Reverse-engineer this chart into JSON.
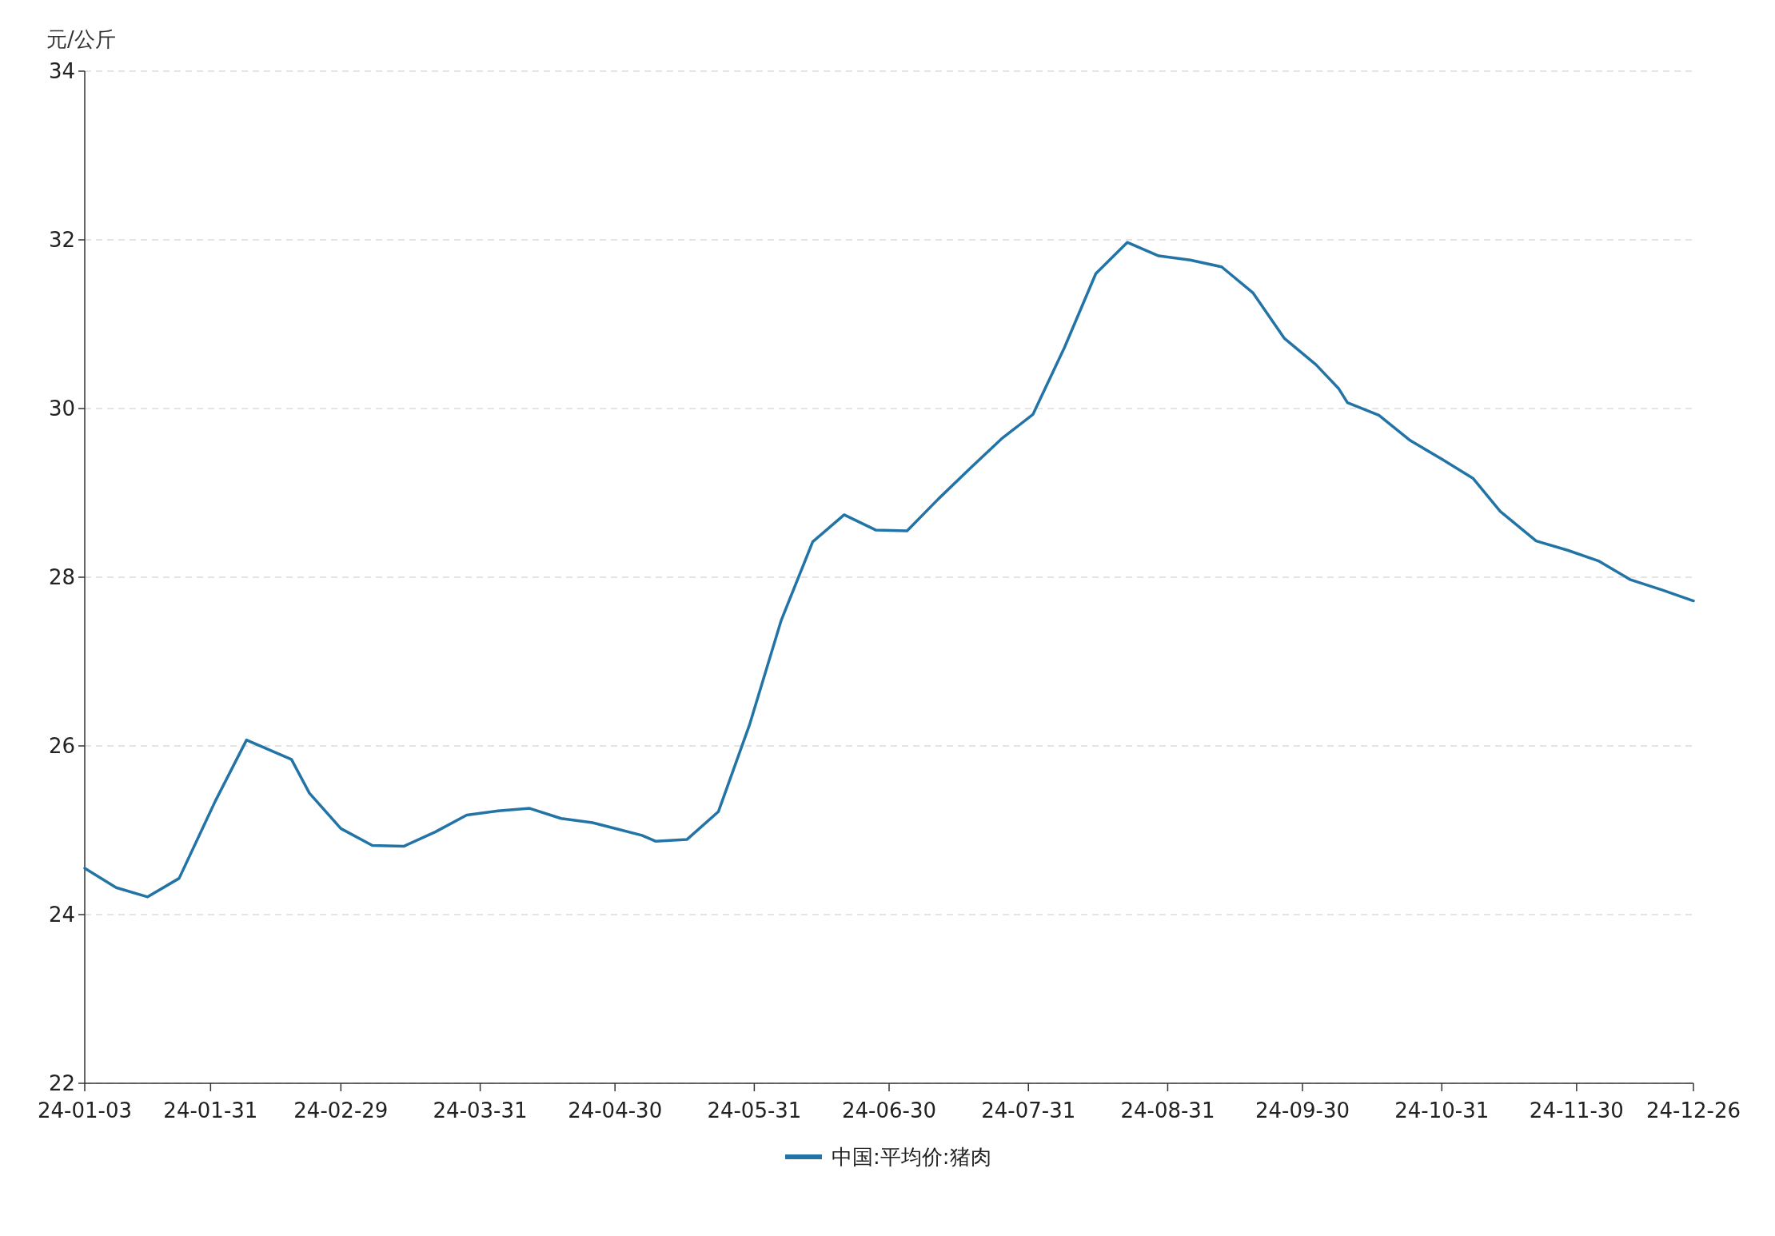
{
  "chart_data": {
    "type": "line",
    "ylabel": "元/公斤",
    "xlim": [
      "--01-03",
      "--12-26"
    ],
    "ylim": [
      22,
      34
    ],
    "yticks": [
      22,
      24,
      26,
      28,
      30,
      32,
      34
    ],
    "xticks": [
      {
        "value": "--01-03",
        "label": "24-01-03"
      },
      {
        "value": "--01-31",
        "label": "24-01-31"
      },
      {
        "value": "--02-29",
        "label": "24-02-29"
      },
      {
        "value": "--03-31",
        "label": "24-03-31"
      },
      {
        "value": "--04-30",
        "label": "24-04-30"
      },
      {
        "value": "--05-31",
        "label": "24-05-31"
      },
      {
        "value": "--06-30",
        "label": "24-06-30"
      },
      {
        "value": "--07-31",
        "label": "24-07-31"
      },
      {
        "value": "--08-31",
        "label": "24-08-31"
      },
      {
        "value": "--09-30",
        "label": "24-09-30"
      },
      {
        "value": "--10-31",
        "label": "24-10-31"
      },
      {
        "value": "--11-30",
        "label": "24-11-30"
      },
      {
        "value": "--12-26",
        "label": "24-12-26"
      }
    ],
    "grid": "y",
    "legend": "bottom",
    "x": [
      "--01-03",
      "--01-10",
      "--01-17",
      "--01-24",
      "--02-01",
      "--02-08",
      "--02-18",
      "--02-22",
      "--02-29",
      "--03-07",
      "--03-14",
      "--03-21",
      "--03-28",
      "--04-04",
      "--04-11",
      "--04-18",
      "--04-25",
      "--05-06",
      "--05-09",
      "--05-16",
      "--05-23",
      "--05-30",
      "--06-06",
      "--06-13",
      "--06-20",
      "--06-27",
      "--07-04",
      "--07-11",
      "--07-18",
      "--07-25",
      "--08-01",
      "--08-08",
      "--08-15",
      "--08-22",
      "--08-29",
      "--09-05",
      "--09-12",
      "--09-19",
      "--09-26",
      "--10-03",
      "--10-08",
      "--10-10",
      "--10-17",
      "--10-24",
      "--10-31",
      "--11-07",
      "--11-13",
      "--11-21",
      "--11-28",
      "--12-05",
      "--12-12",
      "--12-19",
      "--12-26"
    ],
    "series": [
      {
        "name": "中国:平均价:猪肉",
        "color": "#2374a6",
        "values": [
          24.55,
          24.32,
          24.21,
          24.43,
          25.34,
          26.07,
          25.84,
          25.44,
          25.02,
          24.82,
          24.81,
          24.98,
          25.18,
          25.23,
          25.26,
          25.14,
          25.09,
          24.94,
          24.87,
          24.89,
          25.22,
          26.26,
          27.49,
          28.42,
          28.74,
          28.56,
          28.55,
          28.93,
          29.29,
          29.64,
          29.93,
          30.72,
          31.6,
          31.97,
          31.81,
          31.76,
          31.68,
          31.37,
          30.83,
          30.52,
          30.24,
          30.07,
          29.92,
          29.62,
          29.4,
          29.17,
          28.78,
          28.43,
          28.32,
          28.19,
          27.97,
          27.85,
          27.72
        ]
      }
    ]
  }
}
